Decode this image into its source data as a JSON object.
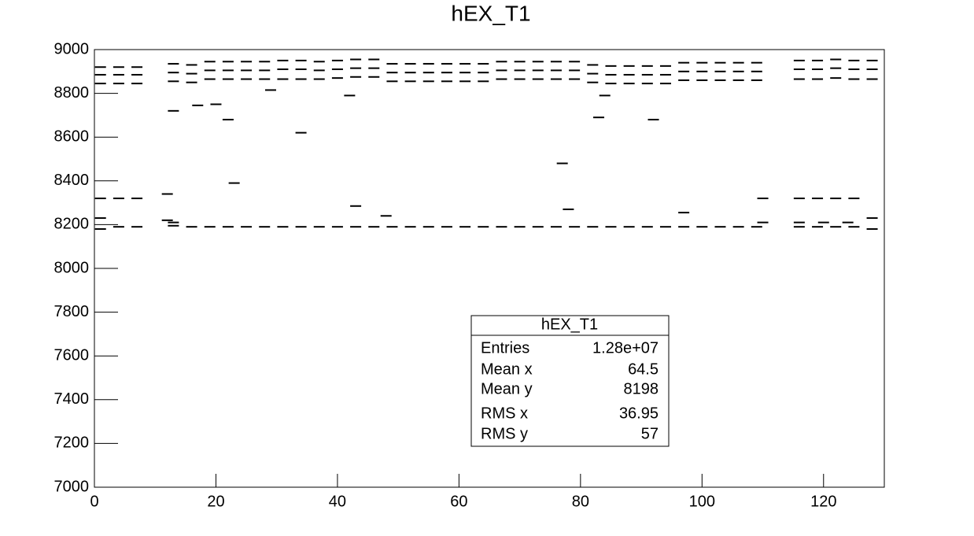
{
  "chart_data": {
    "type": "scatter",
    "title": "hEX_T1",
    "xlim": [
      0,
      130
    ],
    "ylim": [
      7000,
      9000
    ],
    "xticks": [
      0,
      20,
      40,
      60,
      80,
      100,
      120
    ],
    "yticks": [
      7000,
      7200,
      7400,
      7600,
      7800,
      8000,
      8200,
      8400,
      8600,
      8800,
      9000
    ],
    "x": [
      1,
      4,
      7,
      13,
      16,
      19,
      22,
      25,
      28,
      31,
      34,
      37,
      40,
      43,
      46,
      49,
      52,
      55,
      58,
      61,
      64,
      67,
      70,
      73,
      76,
      79,
      82,
      85,
      88,
      91,
      94,
      97,
      100,
      103,
      106,
      109,
      116,
      119,
      122,
      125,
      128
    ],
    "series": [
      {
        "color": "#000000",
        "values": [
          8920,
          8920,
          8920,
          8935,
          8930,
          8945,
          8945,
          8945,
          8945,
          8950,
          8950,
          8945,
          8950,
          8955,
          8955,
          8935,
          8935,
          8935,
          8935,
          8935,
          8935,
          8945,
          8945,
          8945,
          8945,
          8945,
          8930,
          8925,
          8925,
          8925,
          8925,
          8940,
          8940,
          8940,
          8940,
          8940,
          8950,
          8950,
          8955,
          8950,
          8950
        ]
      },
      {
        "color": "#000000",
        "values": [
          8885,
          8885,
          8885,
          8895,
          8890,
          8905,
          8905,
          8905,
          8905,
          8910,
          8910,
          8905,
          8910,
          8915,
          8915,
          8895,
          8895,
          8895,
          8895,
          8895,
          8895,
          8905,
          8905,
          8905,
          8905,
          8905,
          8890,
          8885,
          8885,
          8885,
          8885,
          8900,
          8900,
          8900,
          8900,
          8900,
          8910,
          8910,
          8915,
          8910,
          8910
        ]
      },
      {
        "color": "#000000",
        "values": [
          8845,
          8845,
          8845,
          8855,
          8850,
          8865,
          8865,
          8865,
          8865,
          8865,
          8865,
          8865,
          8870,
          8875,
          8875,
          8855,
          8855,
          8855,
          8855,
          8855,
          8855,
          8865,
          8865,
          8865,
          8865,
          8865,
          8850,
          8845,
          8845,
          8845,
          8845,
          8860,
          8860,
          8860,
          8860,
          8860,
          8865,
          8865,
          8870,
          8865,
          8865
        ]
      },
      {
        "color": "#000000",
        "values": [
          8180,
          8190,
          8190,
          8195,
          8190,
          8190,
          8190,
          8190,
          8190,
          8190,
          8190,
          8190,
          8190,
          8190,
          8190,
          8190,
          8190,
          8190,
          8190,
          8190,
          8190,
          8190,
          8190,
          8190,
          8190,
          8190,
          8190,
          8190,
          8190,
          8190,
          8190,
          8190,
          8190,
          8190,
          8190,
          8190,
          8190,
          8190,
          8190,
          8190,
          8180
        ]
      },
      {
        "color": "#000000",
        "x": [
          1,
          4,
          7,
          12,
          110,
          116,
          119,
          122,
          125,
          1,
          12,
          13,
          110,
          116,
          120,
          124,
          128,
          13,
          17,
          20,
          22,
          23,
          29,
          34,
          42,
          43,
          48,
          77,
          78,
          83,
          84,
          92,
          97
        ],
        "values": [
          8320,
          8320,
          8320,
          8340,
          8320,
          8320,
          8320,
          8320,
          8320,
          8230,
          8220,
          8210,
          8210,
          8210,
          8210,
          8210,
          8230,
          8720,
          8745,
          8750,
          8680,
          8390,
          8815,
          8620,
          8790,
          8285,
          8240,
          8480,
          8270,
          8690,
          8790,
          8680,
          8255
        ]
      }
    ],
    "stats": {
      "title": "hEX_T1",
      "rows": [
        [
          "Entries",
          "1.28e+07"
        ],
        [
          "Mean x",
          "64.5"
        ],
        [
          "Mean y",
          "8198"
        ],
        [
          "RMS x",
          "36.95"
        ],
        [
          "RMS y",
          "57"
        ]
      ]
    }
  }
}
